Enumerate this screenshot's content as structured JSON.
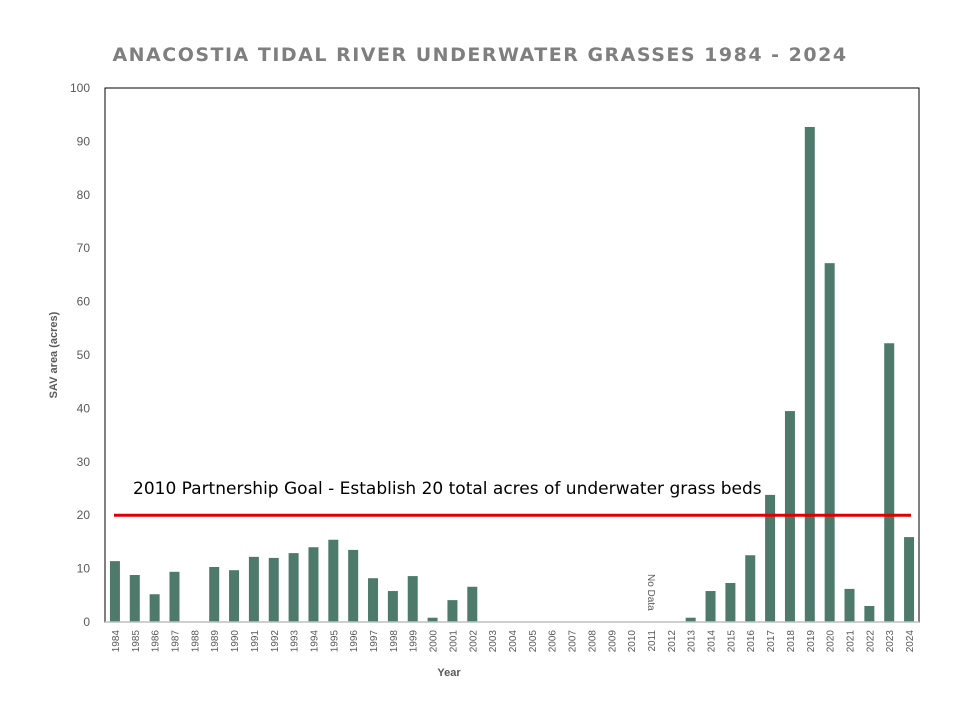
{
  "chart_data": {
    "type": "bar",
    "title": "ANACOSTIA TIDAL RIVER UNDERWATER GRASSES 1984 - 2024",
    "xlabel": "Year",
    "ylabel": "SAV area (acres)",
    "ylim": [
      0,
      100
    ],
    "yticks": [
      0,
      10,
      20,
      30,
      40,
      50,
      60,
      70,
      80,
      90,
      100
    ],
    "grid": false,
    "categories": [
      "1984",
      "1985",
      "1986",
      "1987",
      "1988",
      "1989",
      "1990",
      "1991",
      "1992",
      "1993",
      "1994",
      "1995",
      "1996",
      "1997",
      "1998",
      "1999",
      "2000",
      "2001",
      "2002",
      "2003",
      "2004",
      "2005",
      "2006",
      "2007",
      "2008",
      "2009",
      "2010",
      "2011",
      "2012",
      "2013",
      "2014",
      "2015",
      "2016",
      "2017",
      "2018",
      "2019",
      "2020",
      "2021",
      "2022",
      "2023",
      "2024"
    ],
    "values": [
      11.4,
      8.8,
      5.2,
      9.4,
      0,
      10.3,
      9.7,
      12.2,
      12.0,
      12.9,
      14.0,
      15.4,
      13.5,
      8.2,
      5.8,
      8.6,
      0.8,
      4.1,
      6.6,
      0,
      0,
      0,
      0,
      0,
      0,
      0,
      0,
      0,
      0,
      0.8,
      5.8,
      7.3,
      12.5,
      23.8,
      39.5,
      92.7,
      67.2,
      6.2,
      3.0,
      52.2,
      15.9
    ],
    "bar_color": "#4e7a6c",
    "goal_line": {
      "value": 20,
      "label": "2010 Partnership Goal - Establish 20 total acres of underwater grass beds",
      "color": "#e00000"
    },
    "annotations": [
      {
        "category": "2011",
        "text": "No Data"
      }
    ]
  }
}
